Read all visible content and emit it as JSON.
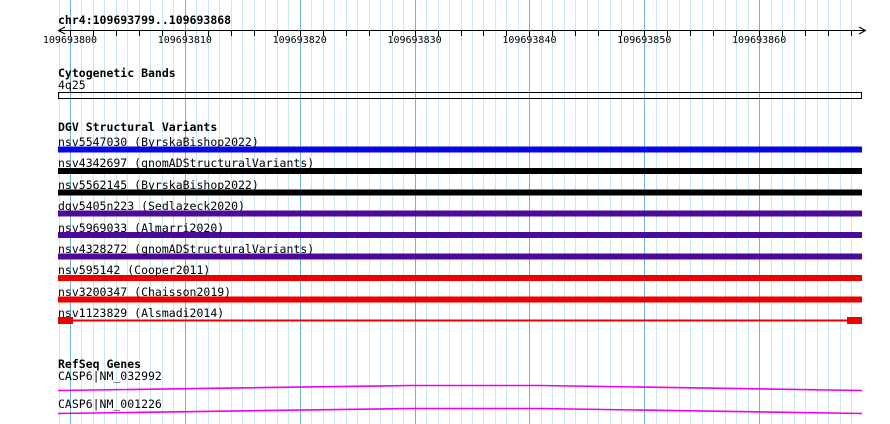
{
  "ruler": {
    "title": "chr4:109693799..109693868",
    "tick_labels": [
      "109693800",
      "109693810",
      "109693820",
      "109693830",
      "109693840",
      "109693850",
      "109693860"
    ]
  },
  "tracks": {
    "cytobands": {
      "title": "Cytogenetic Bands",
      "bands": [
        {
          "label": "4q25"
        }
      ]
    },
    "dgv": {
      "title": "DGV Structural Variants",
      "variants": [
        {
          "label": "nsv5547030 (ByrskaBishop2022)",
          "color": "#0505e6",
          "style": "bar"
        },
        {
          "label": "nsv4342697 (gnomADStructuralVariants)",
          "color": "#000000",
          "style": "bar"
        },
        {
          "label": "nsv5562145 (ByrskaBishop2022)",
          "color": "#000000",
          "style": "bar"
        },
        {
          "label": "dgv5405n223 (Sedlazeck2020)",
          "color": "#4d0a99",
          "style": "bar"
        },
        {
          "label": "nsv5969033 (Almarri2020)",
          "color": "#4d0a99",
          "style": "bar"
        },
        {
          "label": "nsv4328272 (gnomADStructuralVariants)",
          "color": "#4d0a99",
          "style": "bar"
        },
        {
          "label": "nsv595142 (Cooper2011)",
          "color": "#ee0000",
          "style": "bar"
        },
        {
          "label": "nsv3200347 (Chaisson2019)",
          "color": "#ee0000",
          "style": "bar"
        },
        {
          "label": "nsv1123829 (Alsmadi2014)",
          "color": "#ee0000",
          "style": "breakends"
        }
      ]
    },
    "refseq": {
      "title": "RefSeq Genes",
      "genes": [
        {
          "label": "CASP6|NM_032992",
          "color": "#ee00ee"
        },
        {
          "label": "CASP6|NM_001226",
          "color": "#ee00ee"
        }
      ]
    }
  },
  "colors": {
    "background": "#ffffff",
    "grid_minor": "#c6e9f4",
    "grid_major": "#6fb4da",
    "ruler": "#000000",
    "text": "#000000",
    "band_outline": "#000000"
  }
}
